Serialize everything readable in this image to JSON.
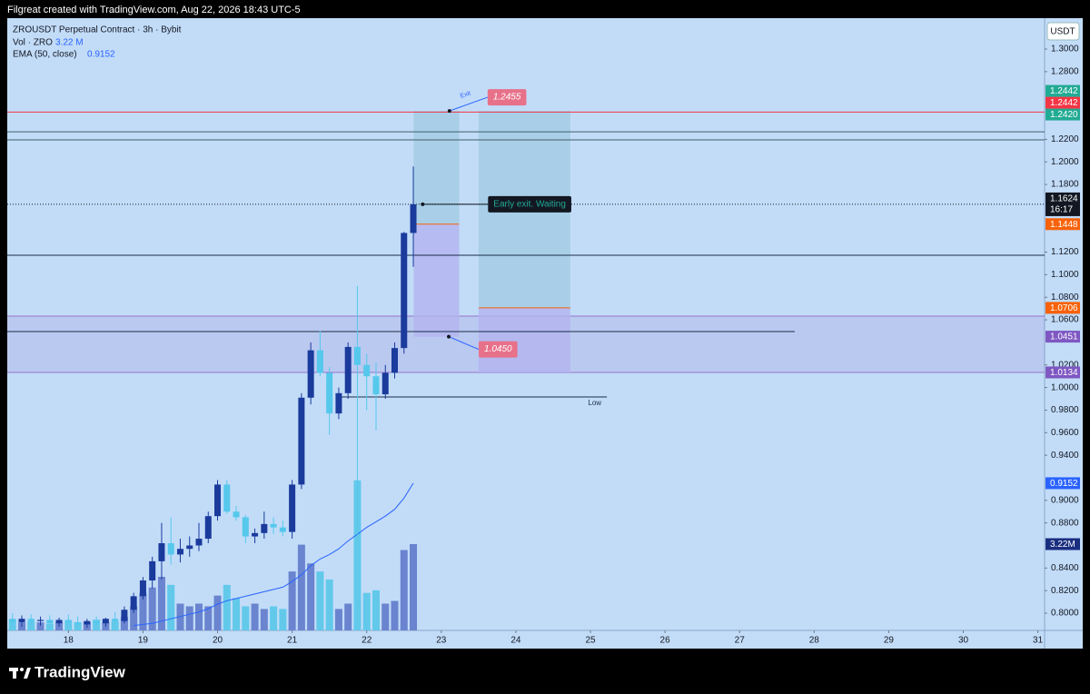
{
  "header": {
    "text": "Filgreat created with TradingView.com, Aug 22, 2026 18:43 UTC-5"
  },
  "legend": {
    "symbol": "ZROUSDT Perpetual Contract · 3h · Bybit",
    "vol_label": "Vol · ZRO",
    "vol_value": "3.22 M",
    "ema_label": "EMA (50, close)",
    "ema_value": "0.9152"
  },
  "footer": {
    "brand": "TradingView"
  },
  "chart_data": {
    "type": "candlestick",
    "currency": "USDT",
    "x": [
      17.25,
      17.375,
      17.5,
      17.625,
      17.75,
      17.875,
      18,
      18.125,
      18.25,
      18.375,
      18.5,
      18.625,
      18.75,
      18.875,
      19,
      19.125,
      19.25,
      19.375,
      19.5,
      19.625,
      19.75,
      19.875,
      20,
      20.125,
      20.25,
      20.375,
      20.5,
      20.625,
      20.75,
      20.875,
      21,
      21.125,
      21.25,
      21.375,
      21.5,
      21.625,
      21.75,
      21.875,
      22,
      22.125,
      22.25,
      22.375,
      22.5,
      22.625
    ],
    "open": [
      0.795,
      0.792,
      0.795,
      0.793,
      0.794,
      0.791,
      0.794,
      0.792,
      0.79,
      0.793,
      0.791,
      0.795,
      0.793,
      0.803,
      0.815,
      0.829,
      0.846,
      0.862,
      0.852,
      0.857,
      0.86,
      0.866,
      0.886,
      0.914,
      0.89,
      0.885,
      0.868,
      0.871,
      0.879,
      0.876,
      0.872,
      0.914,
      0.991,
      1.033,
      1.013,
      0.977,
      0.995,
      1.036,
      1.02,
      1.01,
      0.994,
      1.013,
      1.035,
      1.137
    ],
    "high": [
      0.8,
      0.798,
      0.799,
      0.797,
      0.798,
      0.796,
      0.799,
      0.797,
      0.795,
      0.797,
      0.796,
      0.801,
      0.806,
      0.818,
      0.832,
      0.85,
      0.88,
      0.885,
      0.866,
      0.868,
      0.88,
      0.89,
      0.918,
      0.918,
      0.895,
      0.887,
      0.875,
      0.89,
      0.885,
      0.882,
      0.918,
      0.995,
      1.04,
      1.05,
      1.018,
      1.0,
      1.04,
      1.09,
      1.03,
      1.022,
      1.02,
      1.04,
      1.138,
      1.196
    ],
    "low": [
      0.789,
      0.788,
      0.79,
      0.789,
      0.79,
      0.788,
      0.79,
      0.788,
      0.787,
      0.789,
      0.788,
      0.791,
      0.791,
      0.8,
      0.812,
      0.822,
      0.83,
      0.843,
      0.845,
      0.85,
      0.855,
      0.862,
      0.882,
      0.888,
      0.882,
      0.862,
      0.862,
      0.866,
      0.87,
      0.868,
      0.866,
      0.91,
      0.985,
      1.01,
      0.958,
      0.972,
      0.99,
      0.87,
      0.98,
      0.962,
      0.99,
      1.008,
      1.03,
      1.107
    ],
    "close": [
      0.792,
      0.795,
      0.793,
      0.794,
      0.791,
      0.794,
      0.792,
      0.79,
      0.793,
      0.791,
      0.795,
      0.793,
      0.803,
      0.815,
      0.829,
      0.846,
      0.862,
      0.852,
      0.857,
      0.86,
      0.866,
      0.886,
      0.914,
      0.89,
      0.885,
      0.868,
      0.871,
      0.879,
      0.876,
      0.872,
      0.914,
      0.991,
      1.033,
      1.013,
      0.977,
      0.995,
      1.036,
      1.02,
      1.01,
      0.994,
      1.013,
      1.035,
      1.137,
      1.1624
    ],
    "up_color": "#1a3a9c",
    "down_color": "#55c8ec",
    "xlim": [
      17.18,
      31.09
    ],
    "xticks": [
      18,
      19,
      20,
      21,
      22,
      23,
      24,
      25,
      26,
      27,
      28,
      29,
      30,
      31
    ],
    "ylim": [
      0.7847,
      1.3274
    ],
    "yticks": [
      {
        "value": 1.3,
        "label": "1.3000"
      },
      {
        "value": 1.28,
        "label": "1.2800"
      },
      {
        "value": 1.22,
        "label": "1.2200"
      },
      {
        "value": 1.2,
        "label": "1.2000"
      },
      {
        "value": 1.18,
        "label": "1.1800"
      },
      {
        "value": 1.12,
        "label": "1.1200"
      },
      {
        "value": 1.1,
        "label": "1.1000"
      },
      {
        "value": 1.08,
        "label": "1.0800"
      },
      {
        "value": 1.06,
        "label": "1.0600"
      },
      {
        "value": 1.02,
        "label": "1.0200"
      },
      {
        "value": 1,
        "label": "1.0000"
      },
      {
        "value": 0.98,
        "label": "0.9800"
      },
      {
        "value": 0.96,
        "label": "0.9600"
      },
      {
        "value": 0.94,
        "label": "0.9400"
      },
      {
        "value": 0.9,
        "label": "0.9000"
      },
      {
        "value": 0.88,
        "label": "0.8800"
      },
      {
        "value": 0.84,
        "label": "0.8400"
      },
      {
        "value": 0.82,
        "label": "0.8200"
      },
      {
        "value": 0.8,
        "label": "0.8000"
      }
    ],
    "last_price_line": true,
    "volume": {
      "values": [
        0.4,
        0.3,
        0.35,
        0.3,
        0.25,
        0.3,
        0.35,
        0.3,
        0.3,
        0.4,
        0.3,
        0.35,
        0.5,
        0.9,
        1.4,
        1.6,
        2.0,
        1.7,
        1.0,
        0.9,
        1.0,
        0.9,
        1.3,
        1.7,
        1.2,
        0.9,
        1.0,
        0.8,
        0.9,
        0.8,
        2.2,
        3.2,
        2.5,
        2.2,
        1.9,
        0.8,
        1.0,
        5.6,
        1.4,
        1.5,
        1.0,
        1.1,
        3.0,
        3.22
      ],
      "ylim": [
        0,
        10
      ],
      "up_color": "#6a84cf",
      "down_color": "#62c9ea",
      "price_label": {
        "value": 3.22,
        "label": "3.22M",
        "color": "#1a2e80"
      }
    },
    "ema": {
      "color": "#2962ff",
      "values": [
        null,
        null,
        null,
        null,
        null,
        null,
        null,
        null,
        null,
        null,
        null,
        null,
        null,
        0.789,
        0.79,
        0.791,
        0.793,
        0.795,
        0.797,
        0.799,
        0.801,
        0.804,
        0.808,
        0.811,
        0.813,
        0.815,
        0.817,
        0.819,
        0.821,
        0.823,
        0.828,
        0.834,
        0.842,
        0.848,
        0.852,
        0.857,
        0.864,
        0.87,
        0.876,
        0.881,
        0.886,
        0.892,
        0.902,
        0.9152
      ]
    },
    "hlines": [
      {
        "value": 1.2442,
        "color": "#f23645"
      },
      {
        "value": 1.2267,
        "color": "#3f5f6b"
      },
      {
        "value": 1.2195,
        "color": "#3f5f6b"
      },
      {
        "value": 1.1172,
        "color": "#1c2d4a"
      },
      {
        "value": 1.0496,
        "color": "#1c2d4a",
        "x": [
          17.18,
          27.74
        ]
      }
    ],
    "low_line": {
      "value": 0.9916,
      "x": [
        21.6,
        25.22
      ],
      "label": "Low",
      "color": "#1c2d4a"
    },
    "zone": {
      "range": [
        1.0134,
        1.0633
      ],
      "color": "#9575cd"
    },
    "boxes": [
      {
        "x": [
          22.63,
          23.24
        ],
        "top": 1.2452,
        "entry": 1.1448,
        "bottom": 1.0451
      },
      {
        "x": [
          23.5,
          24.73
        ],
        "top": 1.2452,
        "entry": 1.0706,
        "bottom": 1.0134
      }
    ],
    "callouts": [
      {
        "x": 23.11,
        "y": 1.2452,
        "name": "Exit",
        "text": 1.2455,
        "style": "pink"
      },
      {
        "x": 22.75,
        "y": 1.1624,
        "text": "Early exit. Waiting",
        "style": "dark"
      },
      {
        "x": 23.1,
        "y": 1.0451,
        "text": {
          "value": 1.045,
          "label": "1.0450"
        },
        "style": "pink"
      }
    ],
    "price_labels": [
      {
        "value": 1.2442,
        "label": "1.2442",
        "color": "#f23645"
      },
      {
        "value": 1.2442,
        "label": "1.2442",
        "color": "#22ab94"
      },
      {
        "value": 1.242,
        "label": "1.2420",
        "color": "#22ab94"
      },
      {
        "value": 1.1624,
        "label": "1.1624",
        "sub": "16:17",
        "color": "#131722"
      },
      {
        "value": 1.1448,
        "label": "1.1448",
        "color": "#f7620a"
      },
      {
        "value": 1.0706,
        "label": "1.0706",
        "color": "#f7620a"
      },
      {
        "value": 1.0451,
        "label": "1.0451",
        "color": "#7e57c2"
      },
      {
        "value": 1.0134,
        "label": "1.0134",
        "color": "#7e57c2"
      },
      {
        "value": 0.9152,
        "label": "0.9152",
        "color": "#2962ff"
      }
    ]
  }
}
